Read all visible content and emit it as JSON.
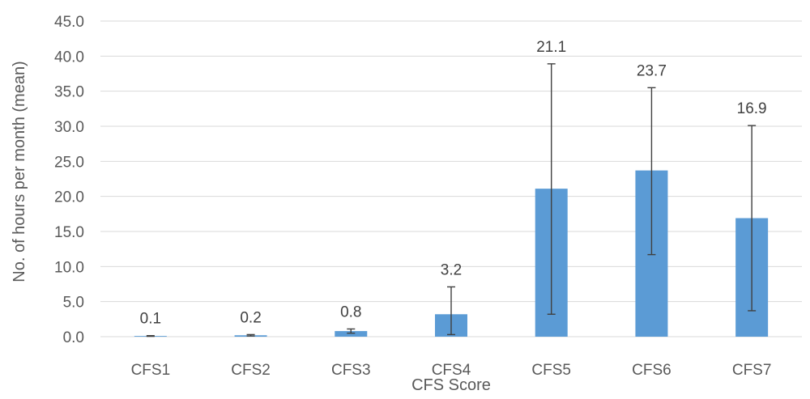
{
  "chart_data": {
    "type": "bar",
    "title": "",
    "xlabel": "CFS Score",
    "ylabel": "No. of hours per month (mean)",
    "categories": [
      "CFS1",
      "CFS2",
      "CFS3",
      "CFS4",
      "CFS5",
      "CFS6",
      "CFS7"
    ],
    "values": [
      0.1,
      0.2,
      0.8,
      3.2,
      21.1,
      23.7,
      16.9
    ],
    "data_labels": [
      "0.1",
      "0.2",
      "0.8",
      "3.2",
      "21.1",
      "23.7",
      "16.9"
    ],
    "error_low": [
      0.05,
      0.1,
      0.5,
      0.3,
      3.2,
      11.7,
      3.7
    ],
    "error_high": [
      0.15,
      0.3,
      1.1,
      7.1,
      38.9,
      35.5,
      30.1
    ],
    "ylim": [
      0,
      45
    ],
    "yticks": [
      "0.0",
      "5.0",
      "10.0",
      "15.0",
      "20.0",
      "25.0",
      "30.0",
      "35.0",
      "40.0",
      "45.0"
    ],
    "grid": true,
    "legend": "none",
    "bar_color": "#5b9bd5"
  }
}
